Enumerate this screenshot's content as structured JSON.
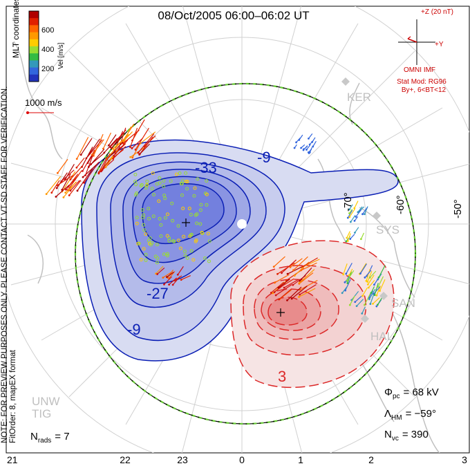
{
  "title": "08/Oct/2005  06:00–06:02  UT",
  "colorbar": {
    "label": "Vel [m/s]",
    "ticks": [
      "600",
      "400",
      "200"
    ],
    "colors": [
      "#b00000",
      "#e02000",
      "#ff6600",
      "#ff9900",
      "#ffcc00",
      "#99dd33",
      "#33bb44",
      "#3399bb",
      "#3366dd",
      "#2233bb"
    ]
  },
  "coords_label": "MLT coordinates",
  "scale_label": "1000 m/s",
  "imf": {
    "z_label": "+Z (20 nT)",
    "y_label": "+Y",
    "source": "OMNI IMF",
    "stat_mod": "Stat Mod: RG96",
    "condition": "By+, 6<BT<12"
  },
  "notice_line1": "NOTE: FOR PREVIEW PURPOSES ONLY. PLEASE CONTACT VT-SD STAFF FOR VERIFICATION.",
  "notice_line2": "FitOrder: 8, mapEX format",
  "stations": [
    "KER",
    "SYS",
    "SAN",
    "HAL",
    "UNW",
    "TIG"
  ],
  "latitude_labels": [
    "-70°",
    "-60°",
    "-50°"
  ],
  "contour_labels": [
    "-9",
    "-33",
    "-27",
    "-9",
    "3"
  ],
  "mlt_labels": [
    "21",
    "22",
    "23",
    "0",
    "1",
    "2",
    "3"
  ],
  "stats": {
    "phi_symbol": "Φ",
    "phi_sub": "pc",
    "phi_value": "=  68 kV",
    "lambda_symbol": "Λ",
    "lambda_sub": "HM",
    "lambda_value": "=  −59°",
    "nvc_symbol": "N",
    "nvc_sub": "vc",
    "nvc_value": "=  390",
    "nrads_symbol": "N",
    "nrads_sub": "rads",
    "nrads_value": "=  7"
  },
  "colors": {
    "negative_contour": "#0a1eb4",
    "positive_contour": "#dc2828",
    "boundary": "#66cc33",
    "land": "#c0c0c0"
  }
}
